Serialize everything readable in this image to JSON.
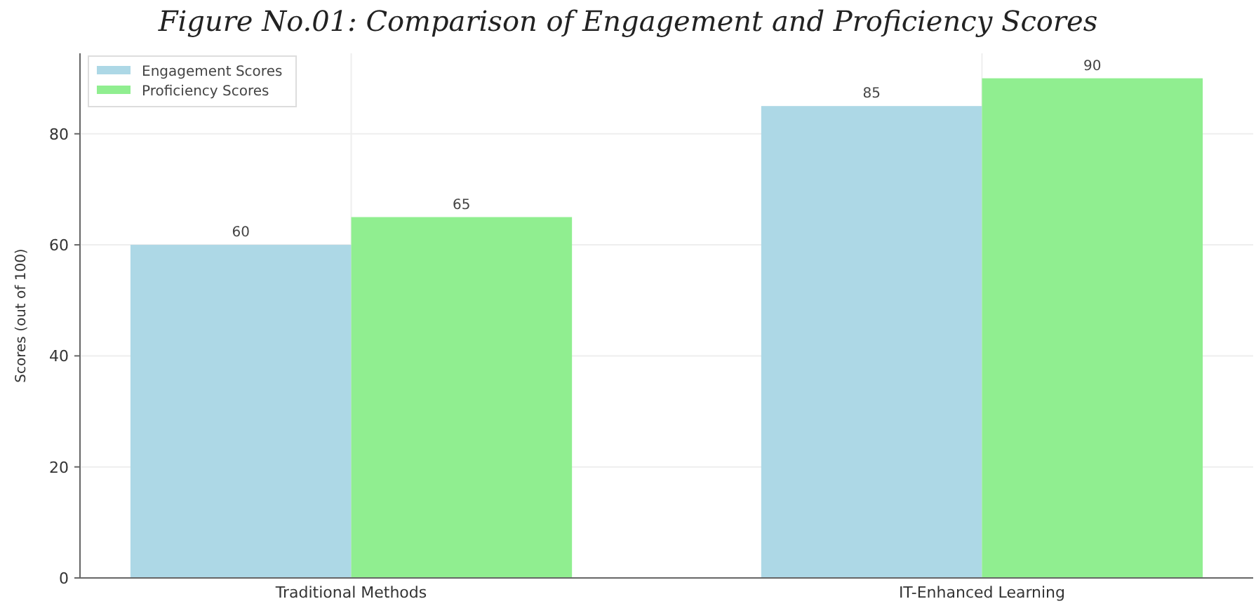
{
  "chart_data": {
    "type": "bar",
    "title": "Figure No.01: Comparison of Engagement and Proficiency Scores",
    "ylabel": "Scores (out of 100)",
    "categories": [
      "Traditional Methods",
      "IT-Enhanced Learning"
    ],
    "series": [
      {
        "name": "Engagement Scores",
        "color": "#add8e6",
        "values": [
          60,
          85
        ]
      },
      {
        "name": "Proficiency Scores",
        "color": "#90ee90",
        "values": [
          65,
          90
        ]
      }
    ],
    "ylim": [
      0,
      94.5
    ],
    "yticks": [
      0,
      20,
      40,
      60,
      80
    ],
    "grid": true,
    "legend": "top left",
    "data_labels": true
  }
}
